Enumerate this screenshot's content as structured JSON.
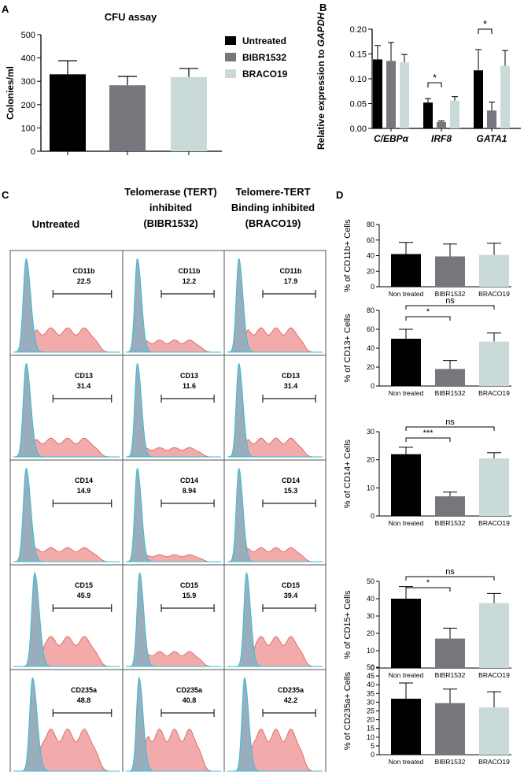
{
  "colors": {
    "untreated": "#000000",
    "bibr": "#76767d",
    "braco": "#c9dad9",
    "hist_red_fill": "#f2aaaa",
    "hist_red_line": "#d85a5a",
    "hist_blue_fill": "#8aaebf",
    "hist_blue_line": "#33c3d8"
  },
  "panels": {
    "a": "A",
    "b": "B",
    "c": "C",
    "d": "D"
  },
  "panel_c": {
    "col_headers": [
      [
        "Untreated"
      ],
      [
        "Telomerase (TERT)",
        "inhibited",
        "(BIBR1532)"
      ],
      [
        "Telomere-TERT",
        "Binding inhibited",
        "(BRACO19)"
      ]
    ],
    "rows": [
      {
        "marker": "CD11b",
        "values": [
          "22.5",
          "12.2",
          "17.9"
        ],
        "redAmp": 0.26,
        "shift": 0.0
      },
      {
        "marker": "CD13",
        "values": [
          "31.4",
          "11.6",
          "31.4"
        ],
        "redAmp": 0.2,
        "shift": 0.0
      },
      {
        "marker": "CD14",
        "values": [
          "14.9",
          "8.94",
          "15.3"
        ],
        "redAmp": 0.15,
        "shift": 0.0
      },
      {
        "marker": "CD15",
        "values": [
          "45.9",
          "15.9",
          "39.4"
        ],
        "redAmp": 0.32,
        "shift": 0.08
      },
      {
        "marker": "CD235a",
        "values": [
          "48.8",
          "40.8",
          "42.2"
        ],
        "redAmp": 0.45,
        "shift": 0.06
      }
    ]
  },
  "chart_data": [
    {
      "id": "A",
      "type": "bar",
      "title": "CFU assay",
      "xlabel": "",
      "ylabel": "Colonies/ml",
      "ylim": [
        0,
        500
      ],
      "yticks": [
        "0",
        "100",
        "200",
        "300",
        "400",
        "500"
      ],
      "categories": [
        "Untreated",
        "BIBR1532",
        "BRACO19"
      ],
      "values": [
        330,
        283,
        318
      ],
      "errors": [
        58,
        38,
        37
      ],
      "legend": [
        "Untreated",
        "BIBR1532",
        "BRACO19"
      ]
    },
    {
      "id": "B",
      "type": "bar",
      "ylabel_prefix": "Relative expression to ",
      "ylabel_italic": "GAPDH",
      "ylim": [
        0,
        0.2
      ],
      "yticks": [
        "0.00",
        "0.05",
        "0.10",
        "0.15",
        "0.20"
      ],
      "categories": [
        "C/EBPα",
        "IRF8",
        "GATA1"
      ],
      "series": [
        {
          "name": "Untreated",
          "values": [
            0.139,
            0.052,
            0.117
          ],
          "errors": [
            0.028,
            0.008,
            0.042
          ]
        },
        {
          "name": "BIBR1532",
          "values": [
            0.136,
            0.013,
            0.036
          ],
          "errors": [
            0.037,
            0.002,
            0.017
          ]
        },
        {
          "name": "BRACO19",
          "values": [
            0.133,
            0.056,
            0.126
          ],
          "errors": [
            0.016,
            0.008,
            0.031
          ]
        }
      ],
      "annotations": [
        {
          "label": "*",
          "group": 1,
          "from": 0,
          "to": 1
        },
        {
          "label": "*",
          "group": 2,
          "from": 0,
          "to": 1
        }
      ]
    },
    {
      "id": "D1",
      "type": "bar",
      "ylabel": "% of CD11b+ Cells",
      "ylim": [
        0,
        80
      ],
      "yticks": [
        "0",
        "20",
        "40",
        "60",
        "80"
      ],
      "categories": [
        "Non treated",
        "BIBR1532",
        "BRACO19"
      ],
      "values": [
        42,
        39,
        41
      ],
      "errors": [
        15,
        16,
        15
      ],
      "annotations": []
    },
    {
      "id": "D2",
      "type": "bar",
      "ylabel": "% of CD13+ Cells",
      "ylim": [
        0,
        80
      ],
      "yticks": [
        "0",
        "20",
        "40",
        "60",
        "80"
      ],
      "categories": [
        "Non treated",
        "BIBR1532",
        "BRACO19"
      ],
      "values": [
        50,
        18,
        47
      ],
      "errors": [
        10,
        9,
        9
      ],
      "annotations": [
        {
          "label": "*",
          "from": 0,
          "to": 1,
          "level": 0
        },
        {
          "label": "ns",
          "from": 0,
          "to": 2,
          "level": 1
        }
      ]
    },
    {
      "id": "D3",
      "type": "bar",
      "ylabel": "% of CD14+ Cells",
      "ylim": [
        0,
        30
      ],
      "yticks": [
        "0",
        "10",
        "20",
        "30"
      ],
      "categories": [
        "Non treated",
        "BIBR1532",
        "BRACO19"
      ],
      "values": [
        22,
        7,
        20.5
      ],
      "errors": [
        2.5,
        1.5,
        2
      ],
      "annotations": [
        {
          "label": "***",
          "from": 0,
          "to": 1,
          "level": 0
        },
        {
          "label": "ns",
          "from": 0,
          "to": 2,
          "level": 1
        }
      ]
    },
    {
      "id": "D4",
      "type": "bar",
      "ylabel": "% of CD15+ Cells",
      "ylim": [
        0,
        50
      ],
      "yticks": [
        "0",
        "10",
        "20",
        "30",
        "40",
        "50"
      ],
      "categories": [
        "Non treated",
        "BIBR1532",
        "BRACO19"
      ],
      "values": [
        40,
        17,
        37.5
      ],
      "errors": [
        7,
        6,
        5.5
      ],
      "annotations": [
        {
          "label": "*",
          "from": 0,
          "to": 1,
          "level": 0
        },
        {
          "label": "ns",
          "from": 0,
          "to": 2,
          "level": 1
        }
      ]
    },
    {
      "id": "D5",
      "type": "bar",
      "ylabel": "% of CD235a+ Cells",
      "ylim": [
        0,
        50
      ],
      "yticks": [
        "0",
        "5",
        "10",
        "15",
        "20",
        "25",
        "30",
        "35",
        "40",
        "45",
        "50"
      ],
      "categories": [
        "Non treated",
        "BIBR1532",
        "BRACO19"
      ],
      "values": [
        32,
        29.5,
        27
      ],
      "errors": [
        9,
        8,
        9
      ],
      "annotations": []
    }
  ]
}
